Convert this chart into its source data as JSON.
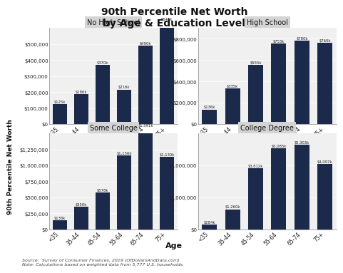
{
  "title": "90th Percentile Net Worth\nby Age & Education Level",
  "subplots": [
    {
      "title": "No High School",
      "categories": [
        "<35",
        "35-44",
        "45-54",
        "55-64",
        "65-74",
        "75+"
      ],
      "values": [
        125000,
        186000,
        370000,
        216000,
        490000,
        641000
      ],
      "ylim": [
        0,
        600000
      ],
      "yticks": [
        0,
        100000,
        200000,
        300000,
        400000,
        500000
      ],
      "ytick_labels": [
        "$0",
        "$100,000",
        "$200,000",
        "$300,000",
        "$400,000",
        "$500,000"
      ],
      "bar_labels": [
        "$125k",
        "$186k",
        "$370k",
        "$216k",
        "$490k",
        "$641k"
      ]
    },
    {
      "title": "High School",
      "categories": [
        "<35",
        "35-44",
        "45-54",
        "55-64",
        "65-74",
        "75+"
      ],
      "values": [
        136000,
        335000,
        555000,
        753000,
        780000,
        760000
      ],
      "ylim": [
        0,
        900000
      ],
      "yticks": [
        0,
        200000,
        400000,
        600000,
        800000
      ],
      "ytick_labels": [
        "$0",
        "$200,000",
        "$400,000",
        "$600,000",
        "$800,000"
      ],
      "bar_labels": [
        "$136k",
        "$335k",
        "$555k",
        "$753k",
        "$780k",
        "$760k"
      ]
    },
    {
      "title": "Some College",
      "categories": [
        "<35",
        "35-44",
        "45-54",
        "55-64",
        "65-74",
        "75+"
      ],
      "values": [
        138000,
        350000,
        578000,
        1156000,
        1591000,
        1130000
      ],
      "ylim": [
        0,
        1500000
      ],
      "yticks": [
        0,
        250000,
        500000,
        750000,
        1000000,
        1250000
      ],
      "ytick_labels": [
        "$0",
        "$250,000",
        "$500,000",
        "$750,000",
        "$1,000,000",
        "$1,250,000"
      ],
      "bar_labels": [
        "$138k",
        "$350k",
        "$578k",
        "$1,156k",
        "$1,591k",
        "$1,130k"
      ]
    },
    {
      "title": "College Degree",
      "categories": [
        "<35",
        "35-44",
        "45-54",
        "55-64",
        "65-74",
        "75+"
      ],
      "values": [
        284000,
        1260000,
        3812000,
        5085000,
        5303000,
        4097000
      ],
      "ylim": [
        0,
        6000000
      ],
      "yticks": [
        0,
        2000000,
        4000000
      ],
      "ytick_labels": [
        "$0",
        "$2,000,000",
        "$4,000,000"
      ],
      "bar_labels": [
        "$284k",
        "$1,260k",
        "$3,812k",
        "$5,085k",
        "$5,303k",
        "$4,097k"
      ]
    }
  ],
  "bar_color": "#1b2a4a",
  "ylabel": "90th Percentile Net Worth",
  "xlabel": "Age",
  "footnote": "Source:  Survey of Consumer Finances, 2019 (OfDollarsAndData.com)\nNote: Calculations based on weighted data from 5,777 U.S. households.",
  "fig_bg_color": "#ffffff",
  "subplot_bg_color": "#f0f0f0",
  "subplot_title_bg": "#d4d4d4"
}
